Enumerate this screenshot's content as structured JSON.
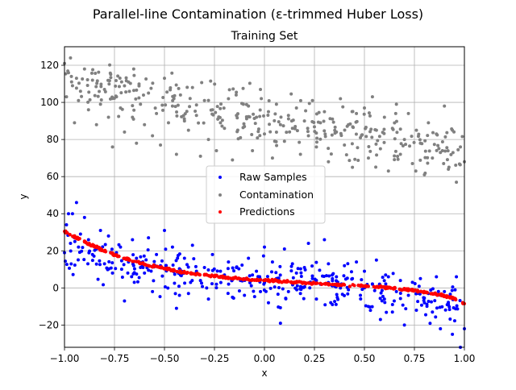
{
  "chart_data": {
    "type": "scatter",
    "suptitle": "Parallel-line Contamination (ε-trimmed Huber Loss)",
    "title": "Training Set",
    "xlabel": "x",
    "ylabel": "y",
    "xlim": [
      -1.0,
      1.0
    ],
    "ylim": [
      -32,
      130
    ],
    "grid": true,
    "legend_position": "center",
    "xticks": [
      "−1.00",
      "−0.75",
      "−0.50",
      "−0.25",
      "0.00",
      "0.25",
      "0.50",
      "0.75",
      "1.00"
    ],
    "yticks": [
      "−20",
      "0",
      "20",
      "40",
      "60",
      "80",
      "100",
      "120"
    ],
    "series": [
      {
        "name": "Raw Samples",
        "color": "#0000ff",
        "description": "noisy inliers around a cubic-like trend, ~400 points",
        "x": [
          -1.0,
          -0.99,
          -0.98,
          -0.97,
          -0.96,
          -0.95,
          -0.94,
          -0.93,
          -0.92,
          -0.9,
          -0.88,
          -0.86,
          -0.84,
          -0.82,
          -0.8,
          -0.78,
          -0.76,
          -0.74,
          -0.72,
          -0.7,
          -0.68,
          -0.66,
          -0.64,
          -0.62,
          -0.6,
          -0.58,
          -0.56,
          -0.54,
          -0.52,
          -0.5,
          -0.48,
          -0.46,
          -0.44,
          -0.42,
          -0.4,
          -0.38,
          -0.36,
          -0.34,
          -0.32,
          -0.3,
          -0.28,
          -0.26,
          -0.24,
          -0.22,
          -0.2,
          -0.18,
          -0.16,
          -0.14,
          -0.12,
          -0.1,
          -0.08,
          -0.06,
          -0.04,
          -0.02,
          0.0,
          0.02,
          0.04,
          0.06,
          0.08,
          0.1,
          0.12,
          0.14,
          0.16,
          0.18,
          0.2,
          0.22,
          0.24,
          0.26,
          0.28,
          0.3,
          0.32,
          0.34,
          0.36,
          0.38,
          0.4,
          0.42,
          0.44,
          0.46,
          0.48,
          0.5,
          0.52,
          0.54,
          0.56,
          0.58,
          0.6,
          0.62,
          0.64,
          0.66,
          0.68,
          0.7,
          0.72,
          0.74,
          0.76,
          0.78,
          0.8,
          0.82,
          0.84,
          0.86,
          0.88,
          0.9,
          0.92,
          0.94,
          0.96,
          0.98,
          1.0
        ],
        "y": [
          19,
          34,
          40,
          24,
          40,
          27,
          46,
          22,
          29,
          38,
          26,
          18,
          21,
          31,
          13,
          28,
          8,
          19,
          22,
          -7,
          14,
          26,
          16,
          11,
          8,
          27,
          -2,
          18,
          12,
          31,
          10,
          22,
          -11,
          7,
          16,
          -3,
          23,
          9,
          4,
          11,
          -6,
          18,
          2,
          9,
          7,
          14,
          -5,
          11,
          4,
          -4,
          16,
          7,
          9,
          -2,
          22,
          -8,
          14,
          5,
          -19,
          21,
          -2,
          13,
          8,
          -3,
          11,
          24,
          5,
          -6,
          2,
          26,
          13,
          -9,
          6,
          0,
          12,
          -1,
          5,
          14,
          -4,
          9,
          -10,
          2,
          15,
          -17,
          -6,
          6,
          -13,
          -2,
          4,
          -20,
          -4,
          3,
          -12,
          5,
          -8,
          -3,
          -13,
          6,
          -22,
          -2,
          -9,
          -25,
          6,
          -32,
          -22
        ]
      },
      {
        "name": "Contamination",
        "color": "#808080",
        "description": "parallel line of outliers shifted up, ~400 points",
        "x": [
          -1.0,
          -0.99,
          -0.98,
          -0.97,
          -0.96,
          -0.95,
          -0.94,
          -0.93,
          -0.92,
          -0.9,
          -0.88,
          -0.86,
          -0.84,
          -0.82,
          -0.8,
          -0.78,
          -0.76,
          -0.74,
          -0.72,
          -0.7,
          -0.68,
          -0.66,
          -0.64,
          -0.62,
          -0.6,
          -0.58,
          -0.56,
          -0.54,
          -0.52,
          -0.5,
          -0.48,
          -0.46,
          -0.44,
          -0.42,
          -0.4,
          -0.38,
          -0.36,
          -0.34,
          -0.32,
          -0.3,
          -0.28,
          -0.26,
          -0.24,
          -0.22,
          -0.2,
          -0.18,
          -0.16,
          -0.14,
          -0.12,
          -0.1,
          -0.08,
          -0.06,
          -0.04,
          -0.02,
          0.0,
          0.02,
          0.04,
          0.06,
          0.08,
          0.1,
          0.12,
          0.14,
          0.16,
          0.18,
          0.2,
          0.22,
          0.24,
          0.26,
          0.28,
          0.3,
          0.32,
          0.34,
          0.36,
          0.38,
          0.4,
          0.42,
          0.44,
          0.46,
          0.48,
          0.5,
          0.52,
          0.54,
          0.56,
          0.58,
          0.6,
          0.62,
          0.64,
          0.66,
          0.68,
          0.7,
          0.72,
          0.74,
          0.76,
          0.78,
          0.8,
          0.82,
          0.84,
          0.86,
          0.88,
          0.9,
          0.92,
          0.94,
          0.96,
          0.98,
          1.0
        ],
        "y": [
          121,
          103,
          116,
          124,
          109,
          89,
          113,
          101,
          106,
          118,
          96,
          112,
          88,
          99,
          107,
          92,
          76,
          103,
          97,
          84,
          111,
          92,
          78,
          99,
          88,
          105,
          82,
          94,
          77,
          113,
          89,
          98,
          72,
          104,
          90,
          85,
          108,
          93,
          71,
          101,
          80,
          96,
          74,
          89,
          86,
          102,
          69,
          93,
          81,
          87,
          98,
          74,
          92,
          107,
          83,
          95,
          70,
          99,
          88,
          79,
          93,
          86,
          97,
          72,
          90,
          82,
          101,
          76,
          89,
          95,
          68,
          91,
          84,
          102,
          77,
          88,
          65,
          94,
          81,
          97,
          70,
          103,
          85,
          75,
          92,
          63,
          86,
          99,
          72,
          80,
          94,
          67,
          85,
          78,
          61,
          89,
          70,
          83,
          73,
          98,
          64,
          85,
          57,
          76,
          68
        ]
      },
      {
        "name": "Predictions",
        "color": "#ff0000",
        "description": "fitted curve evaluated at the training inputs",
        "x": [
          -1.0,
          -0.95,
          -0.9,
          -0.85,
          -0.8,
          -0.75,
          -0.7,
          -0.65,
          -0.6,
          -0.55,
          -0.5,
          -0.45,
          -0.4,
          -0.35,
          -0.3,
          -0.25,
          -0.2,
          -0.15,
          -0.1,
          -0.05,
          0.0,
          0.05,
          0.1,
          0.15,
          0.2,
          0.25,
          0.3,
          0.35,
          0.4,
          0.45,
          0.5,
          0.55,
          0.6,
          0.65,
          0.7,
          0.75,
          0.8,
          0.85,
          0.9,
          0.95,
          1.0
        ],
        "y": [
          30.5,
          27.5,
          24.8,
          22.3,
          20.0,
          17.9,
          16.0,
          14.3,
          12.8,
          11.5,
          10.3,
          9.3,
          8.4,
          7.6,
          6.9,
          6.3,
          5.7,
          5.2,
          4.8,
          4.4,
          4.0,
          3.7,
          3.4,
          3.1,
          2.8,
          2.5,
          2.2,
          1.9,
          1.6,
          1.3,
          1.0,
          0.6,
          0.2,
          -0.3,
          -0.8,
          -1.4,
          -2.2,
          -3.1,
          -4.3,
          -5.8,
          -8.5
        ]
      }
    ]
  }
}
